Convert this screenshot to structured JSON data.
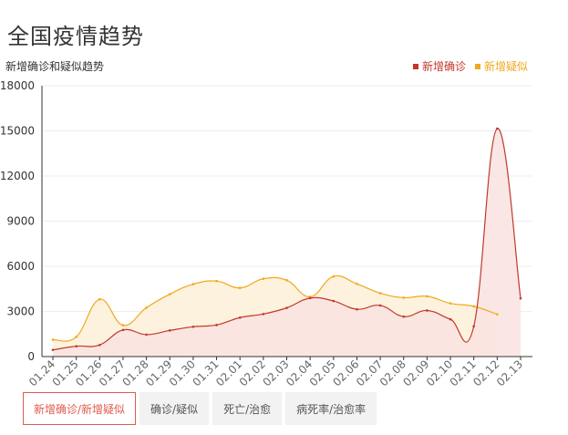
{
  "page": {
    "title": "全国疫情趋势"
  },
  "tabs": [
    {
      "label": "新增确诊/新增疑似",
      "active": true
    },
    {
      "label": "确诊/疑似",
      "active": false
    },
    {
      "label": "死亡/治愈",
      "active": false
    },
    {
      "label": "病死率/治愈率",
      "active": false
    }
  ],
  "colors": {
    "confirmed": "#c0392b",
    "suspected": "#f0a81c",
    "confirmed_fill": "#f9e3e0",
    "suspected_fill": "#fdf0d8",
    "axis": "#333333",
    "grid": "#eeeeee"
  },
  "chart_data": {
    "type": "line",
    "title": "新增确诊和疑似趋势",
    "legend_position": "top-right",
    "grid": true,
    "ylim": [
      0,
      18000
    ],
    "yticks": [
      0,
      3000,
      6000,
      9000,
      12000,
      15000,
      18000
    ],
    "ytick_labels": [
      "0",
      "3000",
      "6000",
      "9000",
      "12000",
      "15000",
      "18000"
    ],
    "categories": [
      "01.24",
      "01.25",
      "01.26",
      "01.27",
      "01.28",
      "01.29",
      "01.30",
      "01.31",
      "02.01",
      "02.02",
      "02.03",
      "02.04",
      "02.05",
      "02.06",
      "02.07",
      "02.08",
      "02.09",
      "02.10",
      "02.11",
      "02.12",
      "02.13"
    ],
    "series": [
      {
        "name": "新增确诊",
        "values": [
          444,
          688,
          769,
          1771,
          1459,
          1737,
          1982,
          2102,
          2590,
          2829,
          3235,
          3887,
          3694,
          3143,
          3399,
          2656,
          3062,
          2478,
          2015,
          15152,
          3870
        ]
      },
      {
        "name": "新增疑似",
        "values": [
          1118,
          1309,
          3806,
          2077,
          3248,
          4148,
          4812,
          5019,
          4562,
          5173,
          5072,
          3971,
          5328,
          4833,
          4214,
          3916,
          4008,
          3536,
          3342,
          2807,
          null
        ]
      }
    ]
  }
}
